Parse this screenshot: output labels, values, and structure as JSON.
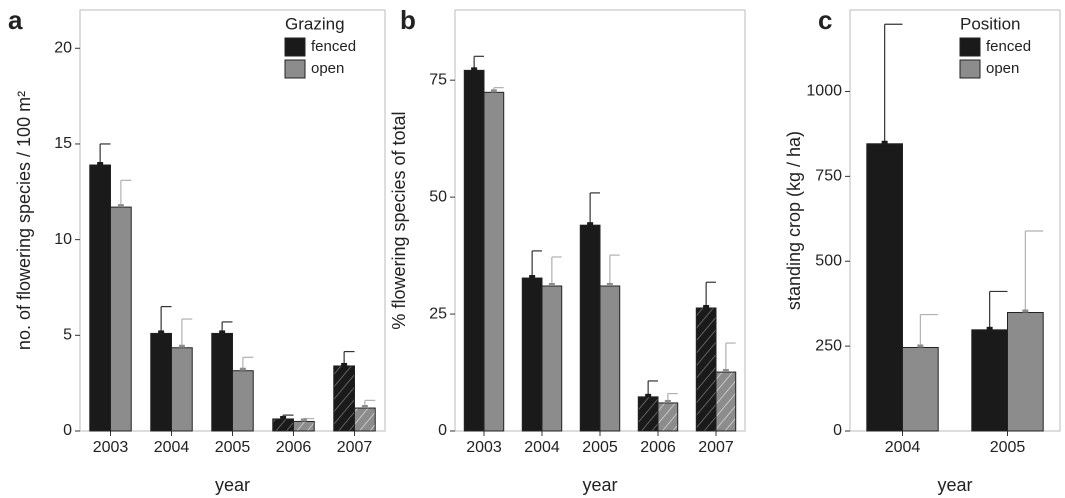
{
  "chart_data": [
    {
      "type": "bar",
      "panel_label": "a",
      "xlabel": "year",
      "ylabel": "no. of flowering species / 100 m²",
      "legend_title": "Grazing",
      "legend": "top-right",
      "categories": [
        "2003",
        "2004",
        "2005",
        "2006",
        "2007"
      ],
      "hatch": [
        false,
        false,
        false,
        true,
        true
      ],
      "series": [
        {
          "name": "fenced",
          "color": "#1a1a1a",
          "error_color": "#333333",
          "values": [
            13.9,
            5.1,
            5.1,
            0.63,
            3.4
          ],
          "errors": [
            1.1,
            1.4,
            0.6,
            0.2,
            0.75
          ]
        },
        {
          "name": "open",
          "color": "#8c8c8c",
          "error_color": "#b0b0b0",
          "values": [
            11.7,
            4.35,
            3.15,
            0.5,
            1.2
          ],
          "errors": [
            1.4,
            1.5,
            0.7,
            0.15,
            0.4
          ]
        }
      ],
      "ylim": [
        0,
        22
      ],
      "yticks": [
        0,
        5,
        10,
        15,
        20
      ]
    },
    {
      "type": "bar",
      "panel_label": "b",
      "xlabel": "year",
      "ylabel": "% flowering species of total",
      "legend": "none",
      "categories": [
        "2003",
        "2004",
        "2005",
        "2006",
        "2007"
      ],
      "hatch": [
        false,
        false,
        false,
        true,
        true
      ],
      "series": [
        {
          "name": "fenced",
          "color": "#1a1a1a",
          "error_color": "#333333",
          "values": [
            77.1,
            32.7,
            44,
            7.3,
            26.3
          ],
          "errors": [
            3,
            5.8,
            6.9,
            3.4,
            5.5
          ]
        },
        {
          "name": "open",
          "color": "#8c8c8c",
          "error_color": "#b0b0b0",
          "values": [
            72.4,
            31,
            31,
            6,
            12.6
          ],
          "errors": [
            1,
            6.2,
            6.6,
            2,
            6.2
          ]
        }
      ],
      "ylim": [
        0,
        90
      ],
      "yticks": [
        0,
        25,
        50,
        75
      ]
    },
    {
      "type": "bar",
      "panel_label": "c",
      "xlabel": "year",
      "ylabel": "standing crop (kg / ha)",
      "legend_title": "Position",
      "legend": "top-right",
      "categories": [
        "2004",
        "2005"
      ],
      "hatch": [
        false,
        false
      ],
      "series": [
        {
          "name": "fenced",
          "color": "#1a1a1a",
          "error_color": "#333333",
          "values": [
            846,
            298
          ],
          "errors": [
            352,
            113
          ]
        },
        {
          "name": "open",
          "color": "#8c8c8c",
          "error_color": "#b0b0b0",
          "values": [
            246,
            349
          ],
          "errors": [
            97,
            240
          ]
        }
      ],
      "ylim": [
        0,
        1240
      ],
      "yticks": [
        0,
        250,
        500,
        750,
        1000
      ]
    }
  ]
}
